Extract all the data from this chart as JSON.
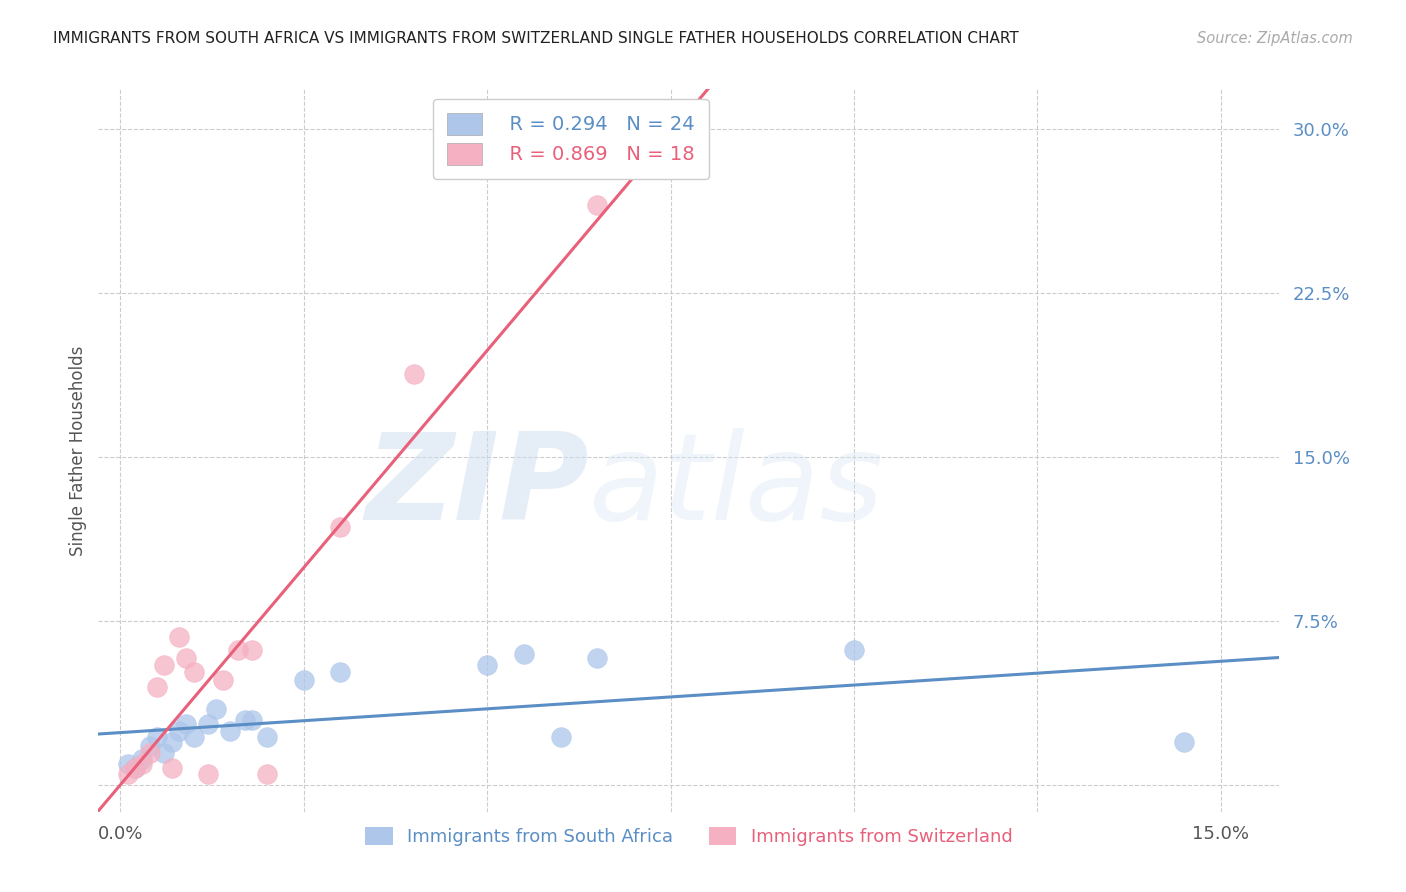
{
  "title": "IMMIGRANTS FROM SOUTH AFRICA VS IMMIGRANTS FROM SWITZERLAND SINGLE FATHER HOUSEHOLDS CORRELATION CHART",
  "source": "Source: ZipAtlas.com",
  "ylabel_label": "Single Father Households",
  "xlim": [
    -0.003,
    0.158
  ],
  "ylim": [
    -0.012,
    0.318
  ],
  "yticks": [
    0.0,
    0.075,
    0.15,
    0.225,
    0.3
  ],
  "ytick_labels": [
    "",
    "7.5%",
    "15.0%",
    "22.5%",
    "30.0%"
  ],
  "xticks": [
    0.0,
    0.025,
    0.05,
    0.075,
    0.1,
    0.125,
    0.15
  ],
  "xtick_labels": [
    "0.0%",
    "",
    "",
    "",
    "",
    "",
    "15.0%"
  ],
  "blue_R": 0.294,
  "blue_N": 24,
  "pink_R": 0.869,
  "pink_N": 18,
  "blue_color": "#adc6ea",
  "pink_color": "#f5b0c2",
  "blue_line_color": "#5b8ec5",
  "pink_line_color": "#e8607a",
  "blue_label": "Immigrants from South Africa",
  "pink_label": "Immigrants from Switzerland",
  "blue_scatter_x": [
    0.001,
    0.002,
    0.003,
    0.004,
    0.005,
    0.006,
    0.007,
    0.008,
    0.009,
    0.01,
    0.012,
    0.013,
    0.015,
    0.017,
    0.018,
    0.02,
    0.025,
    0.03,
    0.05,
    0.055,
    0.06,
    0.065,
    0.1,
    0.145
  ],
  "blue_scatter_y": [
    0.01,
    0.008,
    0.012,
    0.018,
    0.022,
    0.015,
    0.02,
    0.025,
    0.028,
    0.022,
    0.028,
    0.035,
    0.025,
    0.03,
    0.03,
    0.022,
    0.048,
    0.052,
    0.055,
    0.06,
    0.022,
    0.058,
    0.062,
    0.02
  ],
  "pink_scatter_x": [
    0.001,
    0.002,
    0.003,
    0.004,
    0.005,
    0.006,
    0.007,
    0.008,
    0.009,
    0.01,
    0.012,
    0.014,
    0.016,
    0.018,
    0.02,
    0.03,
    0.04,
    0.065
  ],
  "pink_scatter_y": [
    0.005,
    0.008,
    0.01,
    0.015,
    0.045,
    0.055,
    0.008,
    0.068,
    0.058,
    0.052,
    0.005,
    0.048,
    0.062,
    0.062,
    0.005,
    0.118,
    0.188,
    0.265
  ],
  "watermark_zip": "ZIP",
  "watermark_atlas": "atlas",
  "background_color": "#ffffff",
  "grid_color": "#cccccc"
}
